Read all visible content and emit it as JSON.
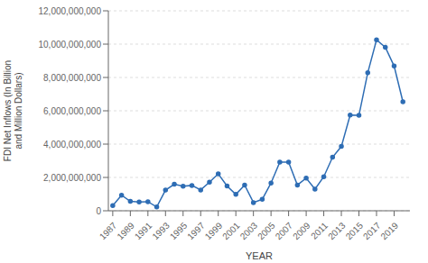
{
  "chart_data": {
    "type": "line",
    "x_label": "YEAR",
    "y_label": "FDI Net Inflows (In Billion\nand Million Dollars)",
    "x": [
      1987,
      1988,
      1989,
      1990,
      1991,
      1992,
      1993,
      1994,
      1995,
      1996,
      1997,
      1998,
      1999,
      2000,
      2001,
      2002,
      2003,
      2004,
      2005,
      2006,
      2007,
      2008,
      2009,
      2010,
      2011,
      2012,
      2013,
      2014,
      2015,
      2016,
      2017,
      2018,
      2019,
      2020
    ],
    "values": [
      307000000,
      936000000,
      563000000,
      530000000,
      544000000,
      228000000,
      1238000000,
      1591000000,
      1478000000,
      1520000000,
      1249000000,
      1718000000,
      2213000000,
      1489000000,
      982000000,
      1542000000,
      491000000,
      688000000,
      1665000000,
      2921000000,
      2916000000,
      1544000000,
      1963000000,
      1298000000,
      2044000000,
      3215000000,
      3860000000,
      5739000000,
      5724000000,
      8280000000,
      10257000000,
      9810000000,
      8683000000,
      6541000000
    ],
    "color": "#2E6DB4",
    "marker": "circle",
    "xlim": [
      1986.5,
      2020.8
    ],
    "xticks": [
      1987,
      1989,
      1991,
      1993,
      1995,
      1997,
      1999,
      2001,
      2003,
      2005,
      2007,
      2009,
      2011,
      2013,
      2015,
      2017,
      2019
    ],
    "ylim": [
      0,
      12000000000
    ],
    "yticks": [
      0,
      {
        "value": 2000000000,
        "label": "2,000,000,000"
      },
      {
        "value": 4000000000,
        "label": "4,000,000,000"
      },
      {
        "value": 6000000000,
        "label": "6,000,000,000"
      },
      {
        "value": 8000000000,
        "label": "8,000,000,000"
      },
      {
        "value": 10000000000,
        "label": "10,000,000,000"
      },
      {
        "value": 12000000000,
        "label": "12,000,000,000"
      }
    ],
    "grid": "y"
  }
}
